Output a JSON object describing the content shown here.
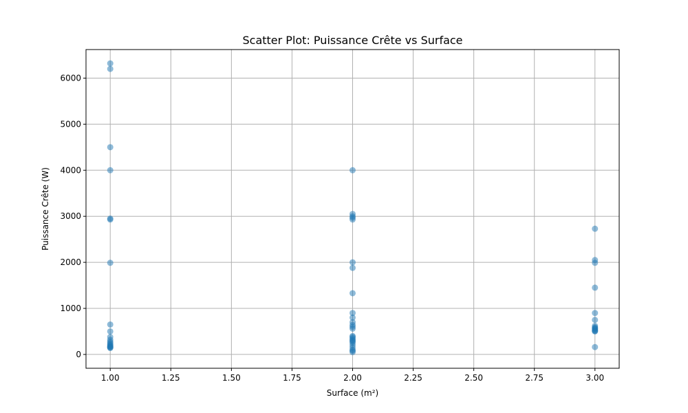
{
  "chart_data": {
    "type": "scatter",
    "title": "Scatter Plot: Puissance Crête vs Surface",
    "xlabel": "Surface (m²)",
    "ylabel": "Puissance Crête (W)",
    "xlim": [
      0.9,
      3.1
    ],
    "ylim": [
      -300,
      6620
    ],
    "xticks": [
      1.0,
      1.25,
      1.5,
      1.75,
      2.0,
      2.25,
      2.5,
      2.75,
      3.0
    ],
    "xtick_labels": [
      "1.00",
      "1.25",
      "1.50",
      "1.75",
      "2.00",
      "2.25",
      "2.50",
      "2.75",
      "3.00"
    ],
    "yticks": [
      0,
      1000,
      2000,
      3000,
      4000,
      5000,
      6000
    ],
    "ytick_labels": [
      "0",
      "1000",
      "2000",
      "3000",
      "4000",
      "5000",
      "6000"
    ],
    "grid": true,
    "point_color": "#1f77b4",
    "point_alpha": 0.5,
    "series": [
      {
        "x": [
          1,
          1,
          1,
          1,
          1,
          1,
          1,
          1,
          1,
          1,
          1,
          1,
          1,
          1,
          1,
          1,
          1,
          1,
          1,
          1,
          2,
          2,
          2,
          2,
          2,
          2,
          2,
          2,
          2,
          2,
          2,
          2,
          2,
          2,
          2,
          2,
          2,
          2,
          2,
          2,
          2,
          2,
          2,
          2,
          2,
          2,
          3,
          3,
          3,
          3,
          3,
          3,
          3,
          3,
          3,
          3,
          3,
          3,
          3,
          3,
          3
        ],
        "y": [
          6320,
          6200,
          4500,
          4000,
          2950,
          2930,
          1990,
          650,
          500,
          380,
          320,
          280,
          250,
          220,
          200,
          180,
          160,
          150,
          140,
          170,
          4000,
          3050,
          3000,
          2970,
          2930,
          2000,
          1880,
          1330,
          900,
          800,
          700,
          640,
          600,
          560,
          400,
          380,
          350,
          320,
          300,
          280,
          250,
          200,
          150,
          100,
          80,
          50,
          2730,
          2050,
          1990,
          1450,
          900,
          750,
          620,
          590,
          570,
          560,
          540,
          520,
          510,
          500,
          160
        ]
      }
    ]
  }
}
